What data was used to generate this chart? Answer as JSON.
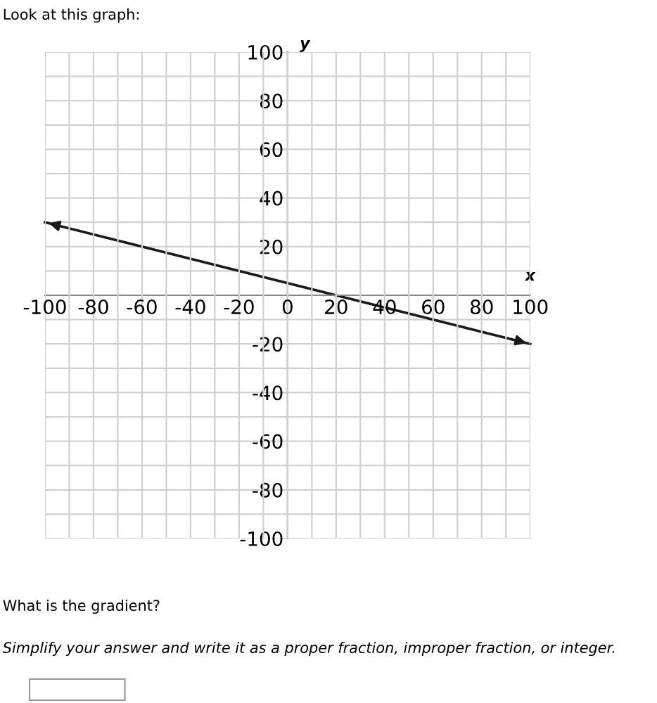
{
  "chart_data": {
    "type": "line",
    "title": "Look at this graph:",
    "xlabel": "x",
    "ylabel": "y",
    "x": [
      -100,
      100
    ],
    "series": [
      {
        "color": "#1a1a1a",
        "values": [
          30,
          -20
        ]
      }
    ],
    "xlim": [
      -100,
      100
    ],
    "ylim": [
      -100,
      100
    ],
    "xticks": [
      -100,
      {
        "value": -90,
        "label": null
      },
      -80,
      {
        "value": -70,
        "label": null
      },
      -60,
      {
        "value": -50,
        "label": null
      },
      -40,
      {
        "value": -30,
        "label": null
      },
      -20,
      {
        "value": -10,
        "label": null
      },
      0,
      {
        "value": 10,
        "label": null
      },
      20,
      {
        "value": 30,
        "label": null
      },
      40,
      {
        "value": 50,
        "label": null
      },
      60,
      {
        "value": 70,
        "label": null
      },
      80,
      {
        "value": 90,
        "label": null
      },
      100
    ],
    "yticks": [
      -100,
      {
        "value": -90,
        "label": null
      },
      -80,
      {
        "value": -70,
        "label": null
      },
      -60,
      {
        "value": -50,
        "label": null
      },
      -40,
      {
        "value": -30,
        "label": null
      },
      -20,
      {
        "value": -10,
        "label": null
      },
      {
        "value": 0,
        "label": null
      },
      {
        "value": 10,
        "label": null
      },
      20,
      {
        "value": 30,
        "label": null
      },
      40,
      {
        "value": 50,
        "label": null
      },
      60,
      {
        "value": 70,
        "label": null
      },
      80,
      {
        "value": 90,
        "label": null
      },
      100
    ],
    "grid": true,
    "marker": "none",
    "line_style": "solid",
    "annotations": [
      "What is the gradient?",
      "Simplify your answer and write it as a proper fraction, improper fraction, or integer."
    ]
  }
}
